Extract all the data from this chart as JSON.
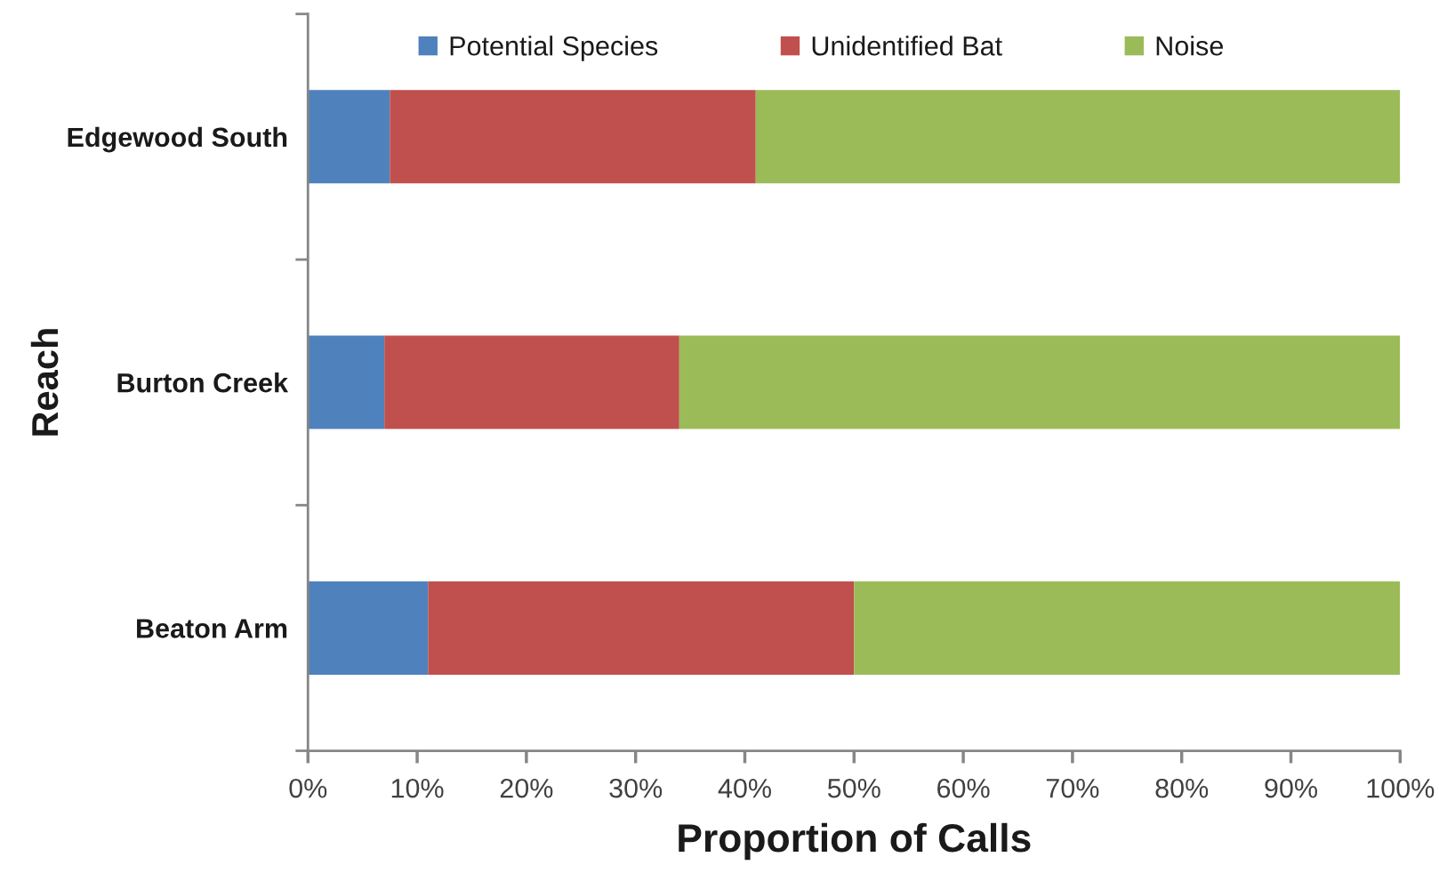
{
  "chart_data": {
    "type": "bar",
    "orientation": "horizontal",
    "stacked": true,
    "xlabel": "Proportion of Calls",
    "ylabel": "Reach",
    "categories": [
      "Edgewood South",
      "Burton Creek",
      "Beaton Arm"
    ],
    "series": [
      {
        "name": "Potential Species",
        "color": "#4f81bd",
        "values": [
          7.5,
          7,
          11
        ]
      },
      {
        "name": "Unidentified Bat",
        "color": "#c0504d",
        "values": [
          33.5,
          27,
          39
        ]
      },
      {
        "name": "Noise",
        "color": "#9bbb59",
        "values": [
          59,
          66,
          50
        ]
      }
    ],
    "xlim": [
      0,
      100
    ],
    "xticks": [
      {
        "value": 0,
        "label": "0%"
      },
      {
        "value": 10,
        "label": "10%"
      },
      {
        "value": 20,
        "label": "20%"
      },
      {
        "value": 30,
        "label": "30%"
      },
      {
        "value": 40,
        "label": "40%"
      },
      {
        "value": 50,
        "label": "50%"
      },
      {
        "value": 60,
        "label": "60%"
      },
      {
        "value": 70,
        "label": "70%"
      },
      {
        "value": 80,
        "label": "80%"
      },
      {
        "value": 90,
        "label": "90%"
      },
      {
        "value": 100,
        "label": "100%"
      }
    ],
    "legend": "top",
    "grid": false
  }
}
